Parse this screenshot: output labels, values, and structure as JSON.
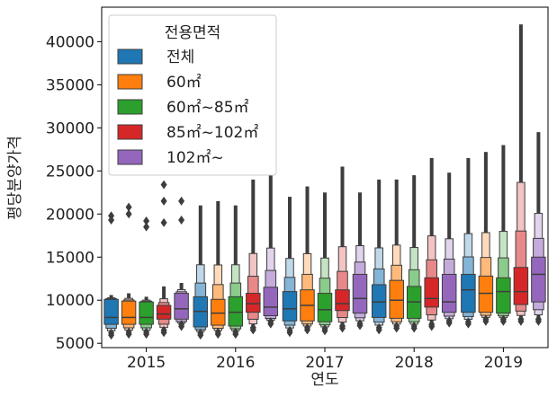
{
  "chart_data": {
    "type": "boxen",
    "title": "",
    "xlabel": "연도",
    "ylabel": "평당분양가격",
    "ylim": [
      4500,
      44000
    ],
    "yticks": [
      5000,
      10000,
      15000,
      20000,
      25000,
      30000,
      35000,
      40000
    ],
    "categories": [
      "2015",
      "2016",
      "2017",
      "2018",
      "2019"
    ],
    "legend": {
      "title": "전용면적",
      "position": "top-left",
      "entries": [
        "전체",
        "60㎡",
        "60㎡~85㎡",
        "85㎡~102㎡",
        "102㎡~"
      ]
    },
    "series": [
      {
        "name": "전체",
        "color": "#1f77b4",
        "stats": [
          {
            "min": 6200,
            "q1": 7200,
            "median": 8000,
            "q3": 10100,
            "max": 10600,
            "outliers": [
              19800,
              19300
            ]
          },
          {
            "min": 6200,
            "q1": 6900,
            "median": 8700,
            "q3": 10400,
            "max": 21000,
            "outliers": []
          },
          {
            "min": 6500,
            "q1": 7600,
            "median": 9000,
            "q3": 11000,
            "max": 22000,
            "outliers": []
          },
          {
            "min": 6800,
            "q1": 8000,
            "median": 9800,
            "q3": 11800,
            "max": 24000,
            "outliers": []
          },
          {
            "min": 7500,
            "q1": 8600,
            "median": 11200,
            "q3": 13000,
            "max": 26500,
            "outliers": []
          }
        ]
      },
      {
        "name": "60㎡",
        "color": "#ff7f0e",
        "stats": [
          {
            "min": 6300,
            "q1": 7200,
            "median": 8000,
            "q3": 9900,
            "max": 10800,
            "outliers": [
              20800,
              20000
            ]
          },
          {
            "min": 6300,
            "q1": 7100,
            "median": 8500,
            "q3": 10100,
            "max": 21500,
            "outliers": []
          },
          {
            "min": 6800,
            "q1": 7600,
            "median": 9400,
            "q3": 11200,
            "max": 23200,
            "outliers": []
          },
          {
            "min": 7000,
            "q1": 7900,
            "median": 10000,
            "q3": 12300,
            "max": 24000,
            "outliers": []
          },
          {
            "min": 7800,
            "q1": 8600,
            "median": 10800,
            "q3": 12800,
            "max": 27200,
            "outliers": []
          }
        ]
      },
      {
        "name": "60㎡~85㎡",
        "color": "#2ca02c",
        "stats": [
          {
            "min": 6300,
            "q1": 7200,
            "median": 8000,
            "q3": 9800,
            "max": 10400,
            "outliers": [
              19200,
              18500
            ]
          },
          {
            "min": 6300,
            "q1": 7000,
            "median": 8600,
            "q3": 10400,
            "max": 21000,
            "outliers": []
          },
          {
            "min": 6700,
            "q1": 7500,
            "median": 8900,
            "q3": 10800,
            "max": 22500,
            "outliers": []
          },
          {
            "min": 7000,
            "q1": 7900,
            "median": 9800,
            "q3": 11600,
            "max": 24500,
            "outliers": []
          },
          {
            "min": 7800,
            "q1": 8500,
            "median": 11000,
            "q3": 12600,
            "max": 28000,
            "outliers": []
          }
        ]
      },
      {
        "name": "85㎡~102㎡",
        "color": "#d62728",
        "stats": [
          {
            "min": 6500,
            "q1": 7800,
            "median": 8400,
            "q3": 9400,
            "max": 11600,
            "outliers": [
              23400,
              21500,
              19000
            ]
          },
          {
            "min": 6800,
            "q1": 8600,
            "median": 9600,
            "q3": 10800,
            "max": 24000,
            "outliers": []
          },
          {
            "min": 7000,
            "q1": 8800,
            "median": 9600,
            "q3": 11200,
            "max": 25500,
            "outliers": []
          },
          {
            "min": 7200,
            "q1": 9200,
            "median": 10200,
            "q3": 12600,
            "max": 26500,
            "outliers": []
          },
          {
            "min": 7800,
            "q1": 9500,
            "median": 11000,
            "q3": 13800,
            "max": 42000,
            "outliers": []
          }
        ]
      },
      {
        "name": "102㎡~",
        "color": "#9467bd",
        "stats": [
          {
            "min": 7200,
            "q1": 7800,
            "median": 9000,
            "q3": 10800,
            "max": 12000,
            "outliers": [
              21500,
              19300
            ]
          },
          {
            "min": 7500,
            "q1": 8200,
            "median": 9200,
            "q3": 11500,
            "max": 24500,
            "outliers": []
          },
          {
            "min": 7300,
            "q1": 8500,
            "median": 10200,
            "q3": 13000,
            "max": 22500,
            "outliers": []
          },
          {
            "min": 7600,
            "q1": 8600,
            "median": 9800,
            "q3": 13000,
            "max": 24800,
            "outliers": []
          },
          {
            "min": 7800,
            "q1": 9800,
            "median": 13000,
            "q3": 15000,
            "max": 29500,
            "outliers": []
          }
        ]
      }
    ]
  }
}
